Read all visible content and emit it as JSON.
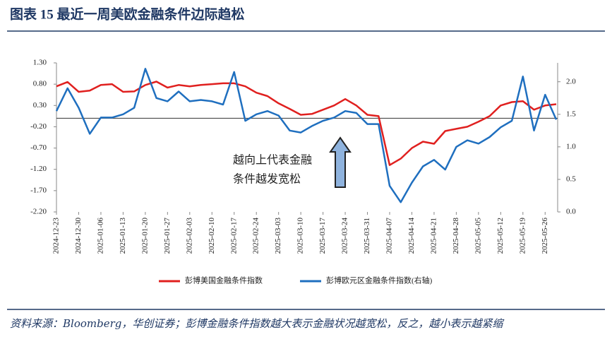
{
  "chart_data": {
    "type": "line",
    "title": "图表 15    最近一周美欧金融条件边际趋松",
    "categories": [
      "2024-12-23",
      null,
      "2024-12-30",
      null,
      "2025-01-06",
      null,
      "2025-01-13",
      null,
      "2025-01-20",
      null,
      "2025-01-27",
      null,
      "2025-02-03",
      null,
      "2025-02-10",
      null,
      "2025-02-17",
      null,
      "2025-02-24",
      null,
      "2025-03-03",
      null,
      "2025-03-10",
      null,
      "2025-03-17",
      null,
      "2025-03-24",
      null,
      "2025-03-31",
      null,
      "2025-04-07",
      null,
      "2025-04-14",
      null,
      "2025-04-21",
      null,
      "2025-04-28",
      null,
      "2025-05-05",
      null,
      "2025-05-12",
      null,
      "2025-05-19",
      null,
      "2025-05-26",
      null
    ],
    "series": [
      {
        "name": "彭博美国金融条件指数",
        "color": "#e0201f",
        "values": [
          0.75,
          0.85,
          0.62,
          0.65,
          0.78,
          0.8,
          0.62,
          0.63,
          0.78,
          0.86,
          0.72,
          0.78,
          0.75,
          0.78,
          0.8,
          0.82,
          0.82,
          0.75,
          0.6,
          0.52,
          0.35,
          0.22,
          0.08,
          0.1,
          0.2,
          0.3,
          0.45,
          0.3,
          0.08,
          0.05,
          -1.1,
          -0.95,
          -0.7,
          -0.55,
          -0.6,
          -0.3,
          -0.25,
          -0.2,
          -0.08,
          0.05,
          0.3,
          0.38,
          0.4,
          0.2,
          0.3,
          0.33
        ]
      },
      {
        "name": "彭博欧元区金融条件指数(右轴)",
        "color": "#1f6fbf",
        "axis": "y2",
        "values": [
          1.55,
          1.9,
          1.6,
          1.2,
          1.45,
          1.45,
          1.5,
          1.6,
          2.2,
          1.75,
          1.7,
          1.85,
          1.7,
          1.72,
          1.7,
          1.65,
          2.15,
          1.4,
          1.5,
          1.55,
          1.48,
          1.25,
          1.22,
          1.32,
          1.4,
          1.45,
          1.55,
          1.52,
          1.35,
          1.35,
          0.4,
          0.15,
          0.45,
          0.7,
          0.8,
          0.65,
          1.0,
          1.1,
          1.05,
          1.15,
          1.3,
          1.4,
          2.08,
          1.25,
          1.8,
          1.42
        ]
      }
    ],
    "ylim": [
      -2.2,
      1.3
    ],
    "yticks": [
      {
        "value": 1.3,
        "label": "1.30"
      },
      {
        "value": 0.8,
        "label": "0.80"
      },
      {
        "value": 0.3,
        "label": "0.30"
      },
      {
        "value": -0.2,
        "label": "-0.20"
      },
      {
        "value": -0.7,
        "label": "-0.70"
      },
      {
        "value": -1.2,
        "label": "-1.20"
      },
      {
        "value": -1.7,
        "label": "-1.70"
      },
      {
        "value": -2.2,
        "label": "-2.20"
      }
    ],
    "y2lim": [
      0,
      2.29
    ],
    "y2ticks": [
      {
        "value": 0,
        "label": "0.0"
      },
      {
        "value": 0.5,
        "label": "0.5"
      },
      {
        "value": 1,
        "label": "1.0"
      },
      {
        "value": 1.5,
        "label": "1.5"
      },
      {
        "value": 2,
        "label": "2.0"
      }
    ],
    "annotations": [
      "越向上代表金融",
      "条件越发宽松"
    ],
    "source": "资料来源：Bloomberg，华创证券；彭博金融条件指数越大表示金融状况越宽松，反之，越小表示越紧缩"
  }
}
